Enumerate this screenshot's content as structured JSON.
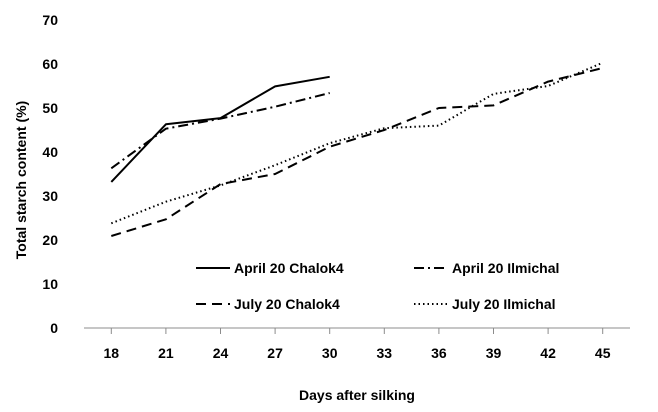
{
  "chart_data": {
    "type": "line",
    "title": "",
    "xlabel": "Days after silking",
    "ylabel": "Total starch content (%)",
    "xlim": [
      18,
      45
    ],
    "ylim": [
      0,
      70
    ],
    "x_ticks": [
      18,
      21,
      24,
      27,
      30,
      33,
      36,
      39,
      42,
      45
    ],
    "y_ticks": [
      0,
      10,
      20,
      30,
      40,
      50,
      60,
      70
    ],
    "grid": false,
    "legend_position": "bottom-right",
    "series": [
      {
        "name": "April 20 Chalok4",
        "style": "solid",
        "color": "#000000",
        "x": [
          18,
          21,
          24,
          27,
          30
        ],
        "y": [
          33.2,
          46.3,
          47.7,
          54.9,
          57.1
        ]
      },
      {
        "name": "April 20 Ilmichal",
        "style": "dashdot",
        "color": "#000000",
        "x": [
          18,
          21,
          24,
          27,
          30
        ],
        "y": [
          36.3,
          45.3,
          47.6,
          50.3,
          53.4
        ]
      },
      {
        "name": "July 20 Chalok4",
        "style": "dashed",
        "color": "#000000",
        "x": [
          18,
          21,
          24,
          27,
          30,
          33,
          36,
          39,
          42,
          45
        ],
        "y": [
          20.9,
          24.7,
          32.7,
          35.0,
          41.2,
          45.0,
          50.0,
          50.6,
          56.0,
          59.1
        ]
      },
      {
        "name": "July 20 Ilmichal",
        "style": "dotted",
        "color": "#000000",
        "x": [
          18,
          21,
          24,
          27,
          30,
          33,
          36,
          39,
          42,
          45
        ],
        "y": [
          23.8,
          28.7,
          32.4,
          37.0,
          42.0,
          45.4,
          46.0,
          53.2,
          55.0,
          60.3
        ]
      }
    ]
  }
}
